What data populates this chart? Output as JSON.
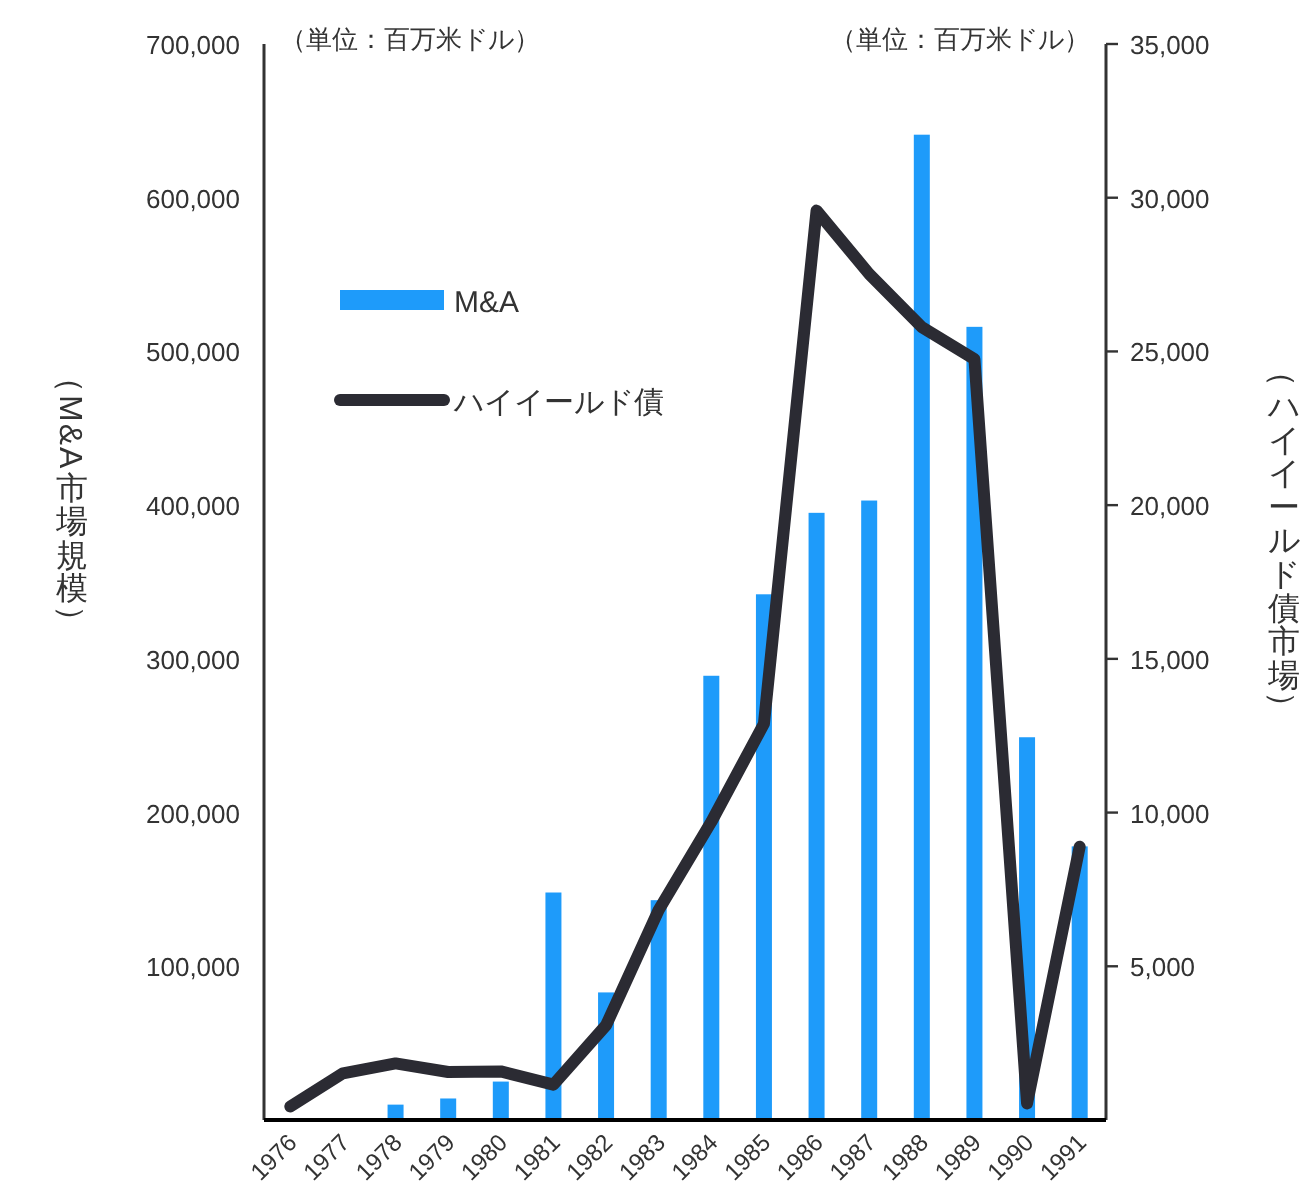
{
  "chart_data": {
    "type": "bar",
    "categories": [
      "1976",
      "1977",
      "1978",
      "1979",
      "1980",
      "1981",
      "1982",
      "1983",
      "1984",
      "1985",
      "1986",
      "1987",
      "1988",
      "1989",
      "1990",
      "1991"
    ],
    "series": [
      {
        "name": "M&A",
        "color": "#1e9bfa",
        "values": [
          null,
          null,
          10000,
          14000,
          25000,
          148000,
          83000,
          143000,
          289000,
          342000,
          395000,
          403000,
          641000,
          516000,
          249000,
          178000
        ]
      },
      {
        "name": "ハイイールド債",
        "type": "line",
        "axis": "y2",
        "color": "#2b2b33",
        "values": [
          440,
          1520,
          1840,
          1560,
          1580,
          1150,
          3080,
          6830,
          9700,
          12890,
          29580,
          27520,
          25790,
          24750,
          540,
          8890
        ]
      }
    ],
    "ylim": [
      0,
      700000
    ],
    "yticks": [
      {
        "value": 100000,
        "label": "100,000"
      },
      {
        "value": 200000,
        "label": "200,000"
      },
      {
        "value": 300000,
        "label": "300,000"
      },
      {
        "value": 400000,
        "label": "400,000"
      },
      {
        "value": 500000,
        "label": "500,000"
      },
      {
        "value": 600000,
        "label": "600,000"
      },
      {
        "value": 700000,
        "label": "700,000"
      }
    ],
    "y2lim": [
      0,
      35000
    ],
    "y2ticks": [
      {
        "value": 5000,
        "label": "5,000"
      },
      {
        "value": 10000,
        "label": "10,000"
      },
      {
        "value": 15000,
        "label": "15,000"
      },
      {
        "value": 20000,
        "label": "20,000"
      },
      {
        "value": 25000,
        "label": "25,000"
      },
      {
        "value": 30000,
        "label": "30,000"
      },
      {
        "value": 35000,
        "label": "35,000"
      }
    ],
    "ylabel": "（M&A市場規模）",
    "y2label": "（ハイイールド債市場）",
    "annotations": [
      "（単位：百万米ドル）",
      "（単位：百万米ドル）"
    ],
    "legend": "top left"
  }
}
